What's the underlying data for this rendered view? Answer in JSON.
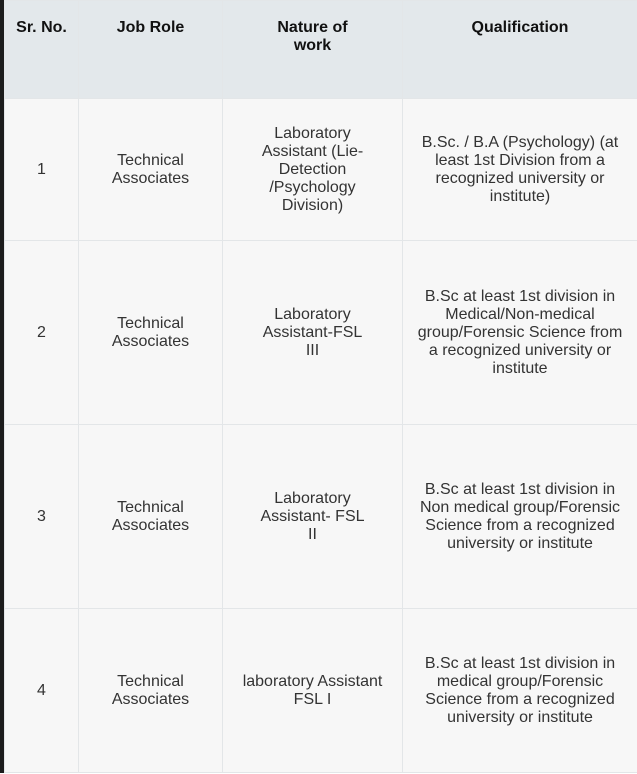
{
  "headers": [
    "Sr. No.",
    "Job Role",
    "Nature of work",
    "Qualification"
  ],
  "rows": [
    {
      "sr": "1",
      "role": "Technical Associates",
      "work": "Laboratory Assistant (Lie-Detection /Psychology Division)",
      "qualification": "B.Sc. / B.A (Psychology) (at least 1st Division from a recognized university or institute)"
    },
    {
      "sr": "2",
      "role": "Technical Associates",
      "work": "Laboratory Assistant-FSL III",
      "qualification": "B.Sc at least 1st division in Medical/Non-medical group/Forensic Science from a recognized university or institute"
    },
    {
      "sr": "3",
      "role": "Technical Associates",
      "work": "Laboratory Assistant- FSL II",
      "qualification": "B.Sc at least 1st division in Non medical group/Forensic Science from a recognized university or institute"
    },
    {
      "sr": "4",
      "role": "Technical Associates",
      "work": "laboratory Assistant FSL I",
      "qualification": "B.Sc at least 1st division in medical group/Forensic Science from a recognized university or institute"
    }
  ]
}
